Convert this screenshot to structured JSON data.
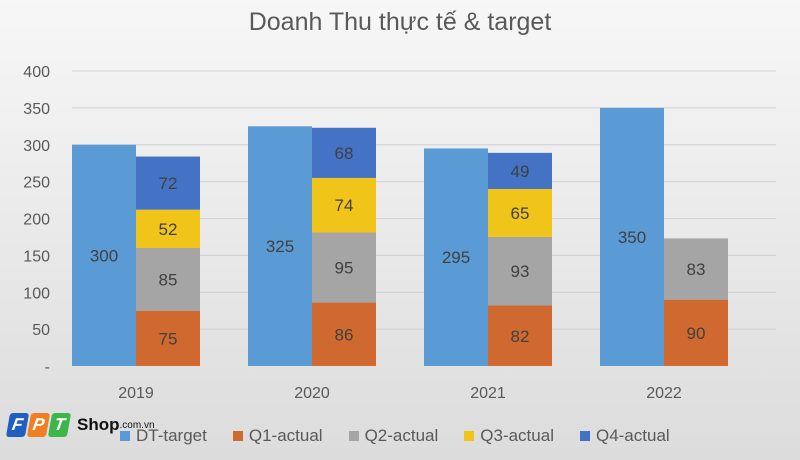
{
  "chart_data": {
    "type": "bar",
    "title": "Doanh Thu thực tế & target",
    "categories": [
      "2019",
      "2020",
      "2021",
      "2022"
    ],
    "ylim": [
      0,
      400
    ],
    "yticks": [
      "-",
      "50",
      "100",
      "150",
      "200",
      "250",
      "300",
      "350",
      "400"
    ],
    "grid": true,
    "legend_position": "bottom",
    "series": [
      {
        "name": "DT-target",
        "color": "#5b9bd5",
        "stack": "target",
        "values": [
          300,
          325,
          295,
          350
        ]
      },
      {
        "name": "Q1-actual",
        "color": "#d0692f",
        "stack": "actual",
        "values": [
          75,
          86,
          82,
          90
        ]
      },
      {
        "name": "Q2-actual",
        "color": "#a5a5a5",
        "stack": "actual",
        "values": [
          85,
          95,
          93,
          83
        ]
      },
      {
        "name": "Q3-actual",
        "color": "#f0c419",
        "stack": "actual",
        "values": [
          52,
          74,
          65,
          null
        ]
      },
      {
        "name": "Q4-actual",
        "color": "#4472c4",
        "stack": "actual",
        "values": [
          72,
          68,
          49,
          null
        ]
      }
    ]
  },
  "watermark": {
    "letters": [
      "F",
      "P",
      "T"
    ],
    "colors": [
      "#1f5fbf",
      "#f07f22",
      "#3cb54a"
    ],
    "shop": "Shop",
    "domain": ".com.vn"
  }
}
